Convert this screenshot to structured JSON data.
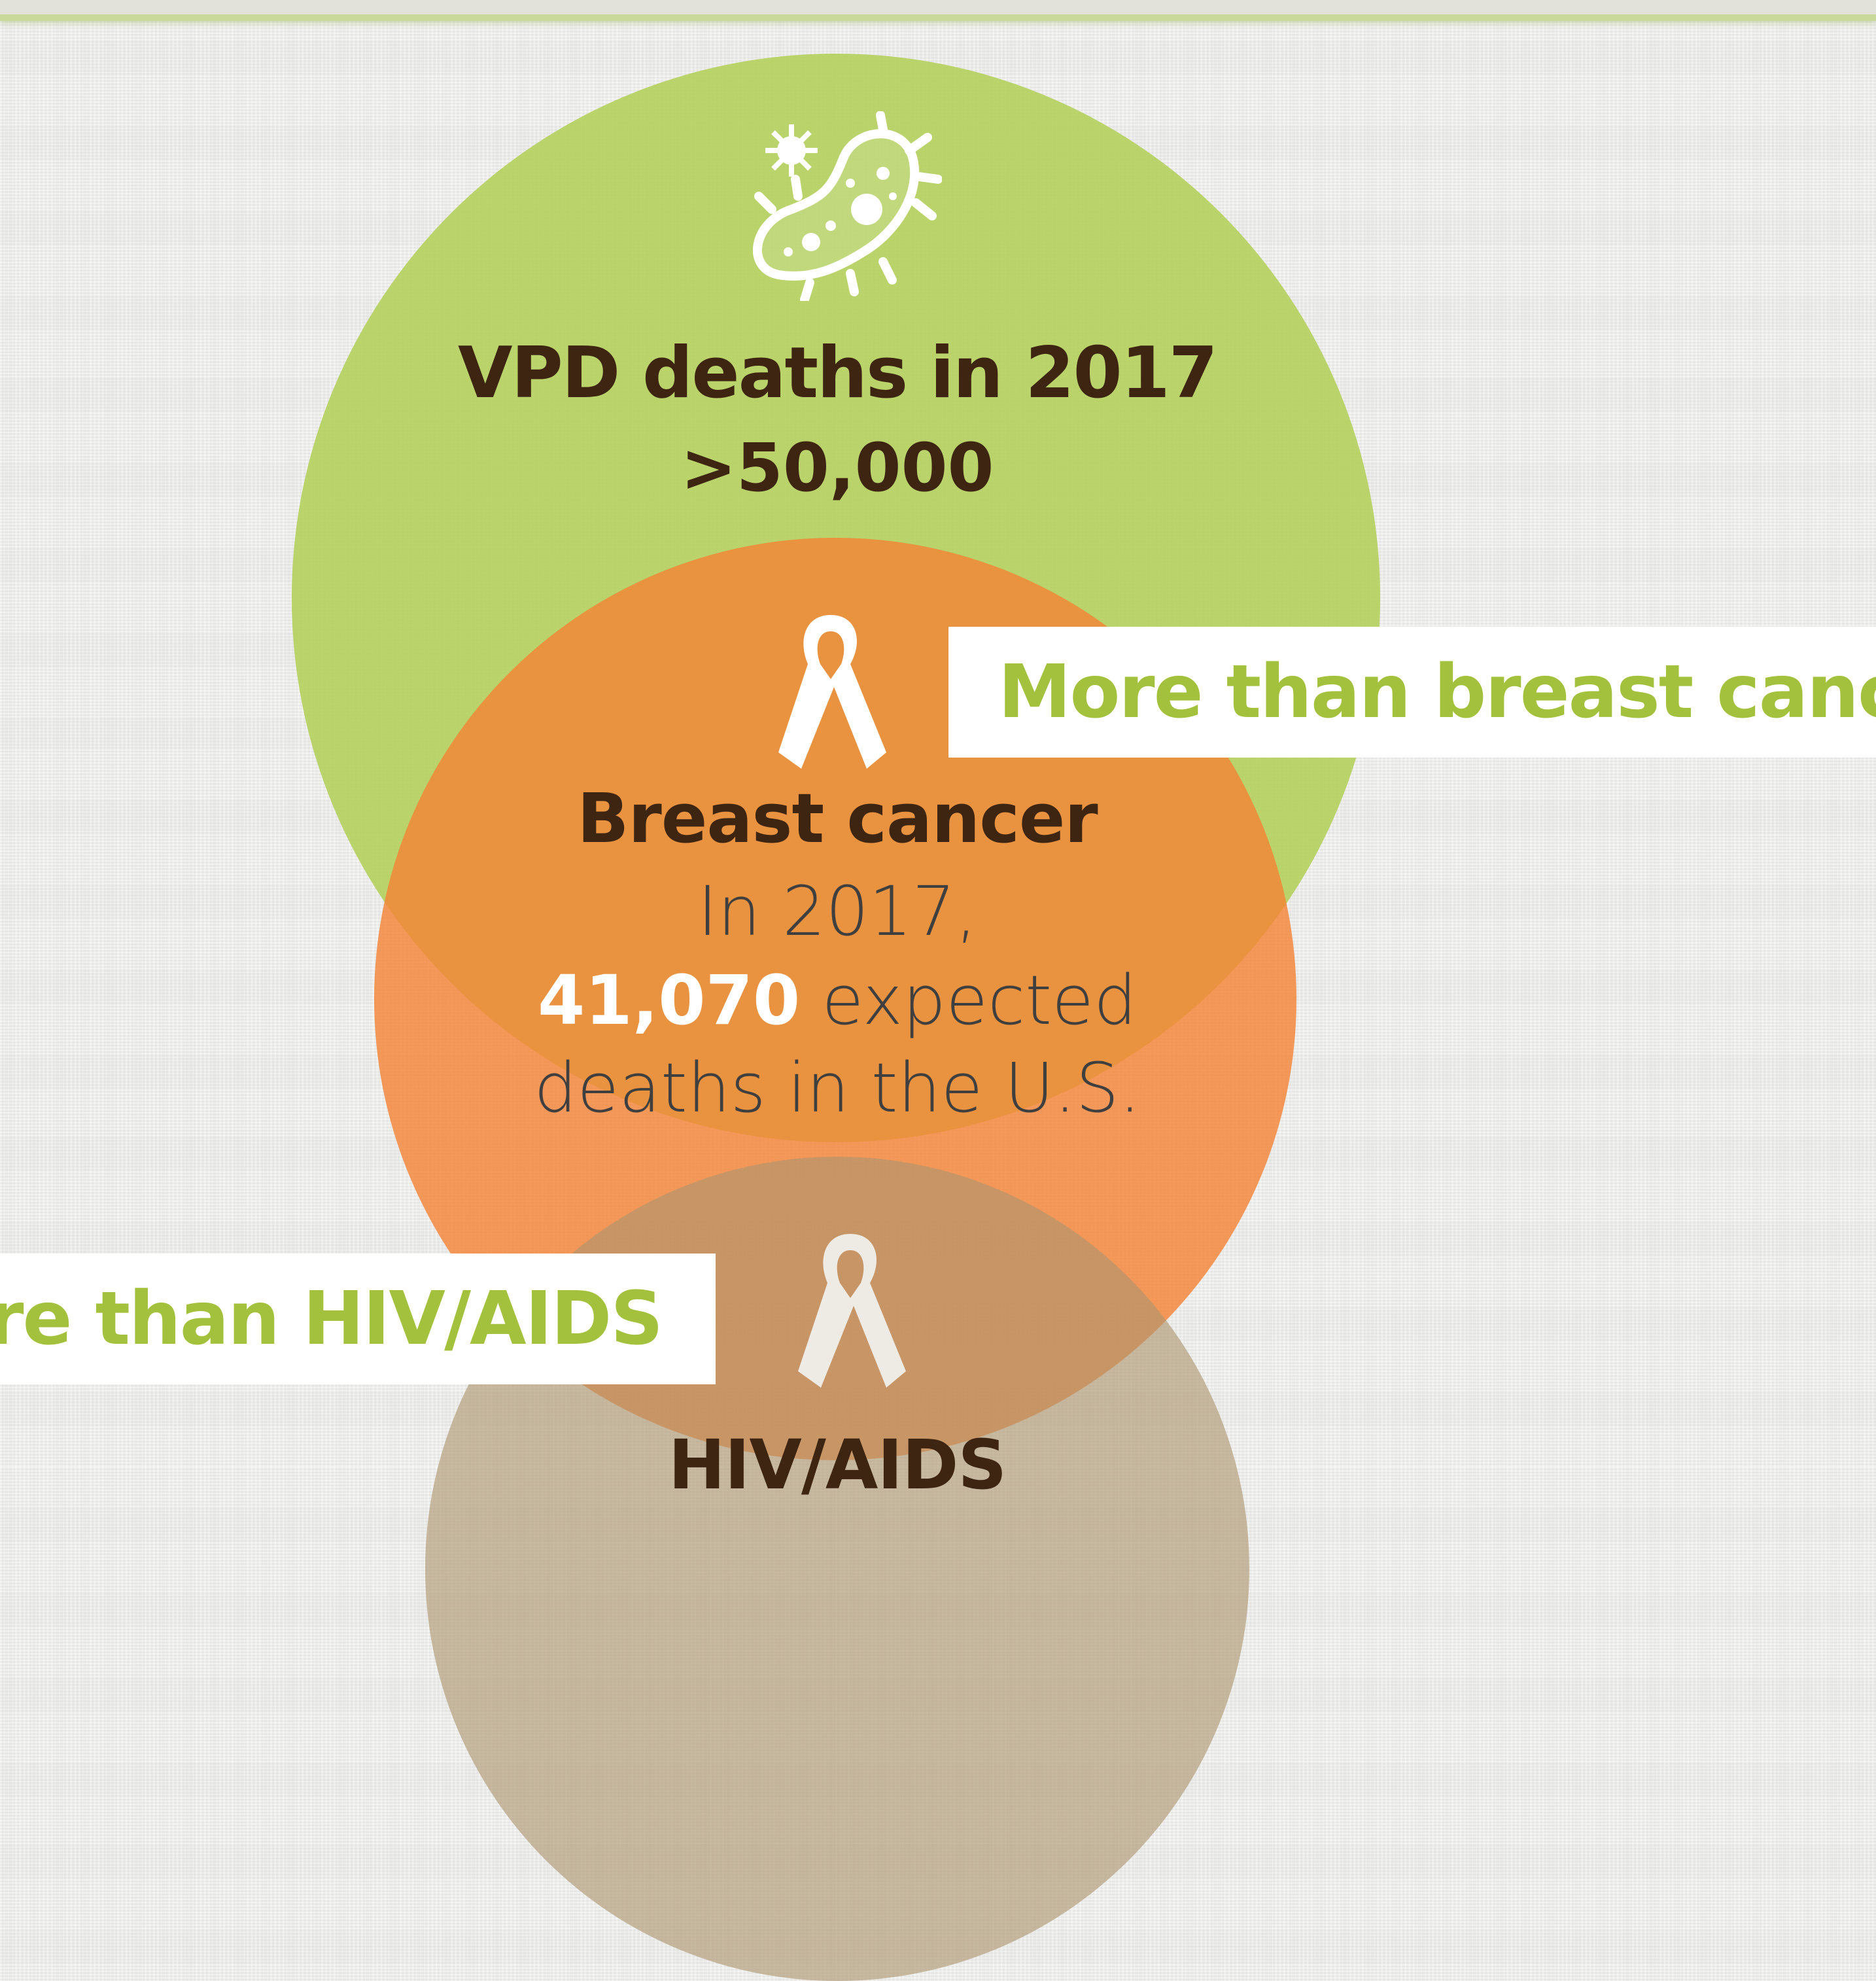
{
  "colors": {
    "vpd_circle": "#b5d05f",
    "breast_circle": "#f58234",
    "hiv_circle": "#ac946e",
    "banner_text": "#a3c13c",
    "heading_text": "#3d2512"
  },
  "vpd": {
    "icon": "germ-icon",
    "title": "VPD deaths in 2017",
    "value": ">50,000"
  },
  "breast": {
    "icon": "awareness-ribbon-icon",
    "title": "Breast cancer",
    "line1": "In 2017,",
    "number": "41,070",
    "line2_rest": " expected",
    "line3": "deaths in the U.S.",
    "comparison_banner": "More than breast cance"
  },
  "hiv": {
    "icon": "awareness-ribbon-icon",
    "title": "HIV/AIDS",
    "comparison_banner": "re than HIV/AIDS"
  }
}
